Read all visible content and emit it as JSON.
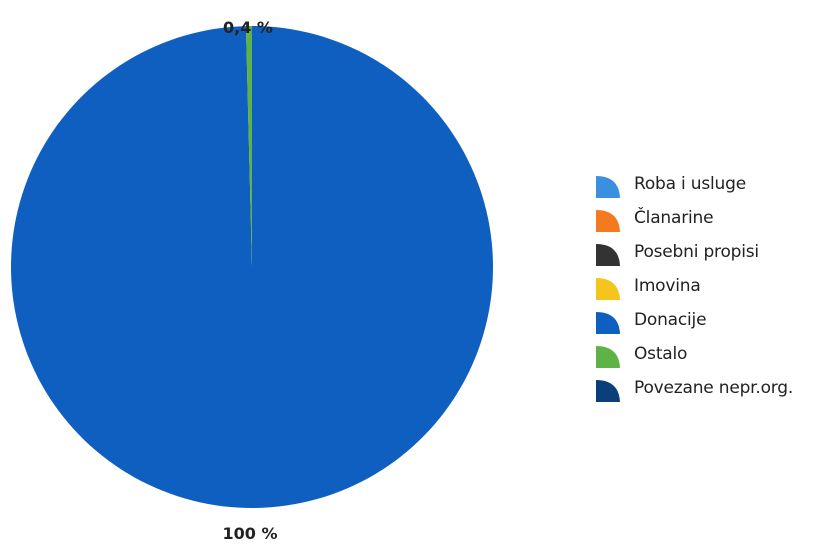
{
  "chart_data": {
    "type": "pie",
    "categories": [
      "Roba i usluge",
      "Članarine",
      "Posebni propisi",
      "Imovina",
      "Donacije",
      "Ostalo",
      "Povezane nepr.org."
    ],
    "values": [
      0,
      0,
      0,
      0,
      99.6,
      0.4,
      0
    ],
    "colors": [
      "#3a8fe0",
      "#f47a20",
      "#333333",
      "#f3c51d",
      "#0f5fc0",
      "#5fb246",
      "#0b3f7a"
    ],
    "data_labels": {
      "Ostalo": "0,4 %",
      "Donacije": "100 %"
    },
    "legend_position": "right",
    "start_angle": "top, clockwise"
  },
  "legend": {
    "items": [
      {
        "label": "Roba i usluge",
        "color": "#3a8fe0"
      },
      {
        "label": "Članarine",
        "color": "#f47a20"
      },
      {
        "label": "Posebni propisi",
        "color": "#333333"
      },
      {
        "label": "Imovina",
        "color": "#f3c51d"
      },
      {
        "label": "Donacije",
        "color": "#0f5fc0"
      },
      {
        "label": "Ostalo",
        "color": "#5fb246"
      },
      {
        "label": "Povezane nepr.org.",
        "color": "#0b3f7a"
      }
    ]
  }
}
